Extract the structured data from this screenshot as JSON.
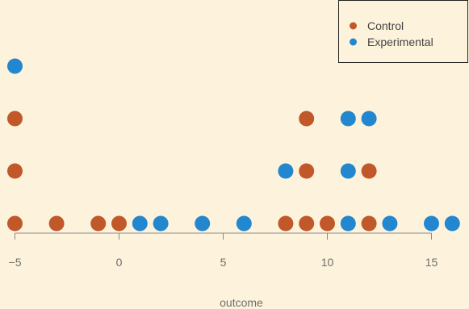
{
  "chart_data": {
    "type": "scatter",
    "subtype": "dot-plot",
    "title": "",
    "xlabel": "outcome",
    "ylabel": "",
    "xlim": [
      -5.4,
      16.2
    ],
    "xticks": [
      -5,
      0,
      5,
      10,
      15
    ],
    "xtick_labels": [
      "−5",
      "0",
      "5",
      "10",
      "15"
    ],
    "grid": false,
    "legend_position": "top-right",
    "background": "#fdf3dc",
    "series": [
      {
        "name": "Control",
        "color": "#c0582a",
        "points": [
          {
            "x": -5,
            "y": 1
          },
          {
            "x": -5,
            "y": 2
          },
          {
            "x": -5,
            "y": 3
          },
          {
            "x": -3,
            "y": 1
          },
          {
            "x": -1,
            "y": 1
          },
          {
            "x": 0,
            "y": 1
          },
          {
            "x": 8,
            "y": 1
          },
          {
            "x": 9,
            "y": 1
          },
          {
            "x": 9,
            "y": 2
          },
          {
            "x": 9,
            "y": 3
          },
          {
            "x": 10,
            "y": 1
          },
          {
            "x": 12,
            "y": 1
          },
          {
            "x": 12,
            "y": 2
          }
        ]
      },
      {
        "name": "Experimental",
        "color": "#2387cf",
        "points": [
          {
            "x": -5,
            "y": 4
          },
          {
            "x": 1,
            "y": 1
          },
          {
            "x": 2,
            "y": 1
          },
          {
            "x": 4,
            "y": 1
          },
          {
            "x": 6,
            "y": 1
          },
          {
            "x": 8,
            "y": 2
          },
          {
            "x": 11,
            "y": 1
          },
          {
            "x": 11,
            "y": 2
          },
          {
            "x": 11,
            "y": 3
          },
          {
            "x": 12,
            "y": 3
          },
          {
            "x": 13,
            "y": 1
          },
          {
            "x": 15,
            "y": 1
          },
          {
            "x": 16,
            "y": 1
          }
        ]
      }
    ]
  }
}
